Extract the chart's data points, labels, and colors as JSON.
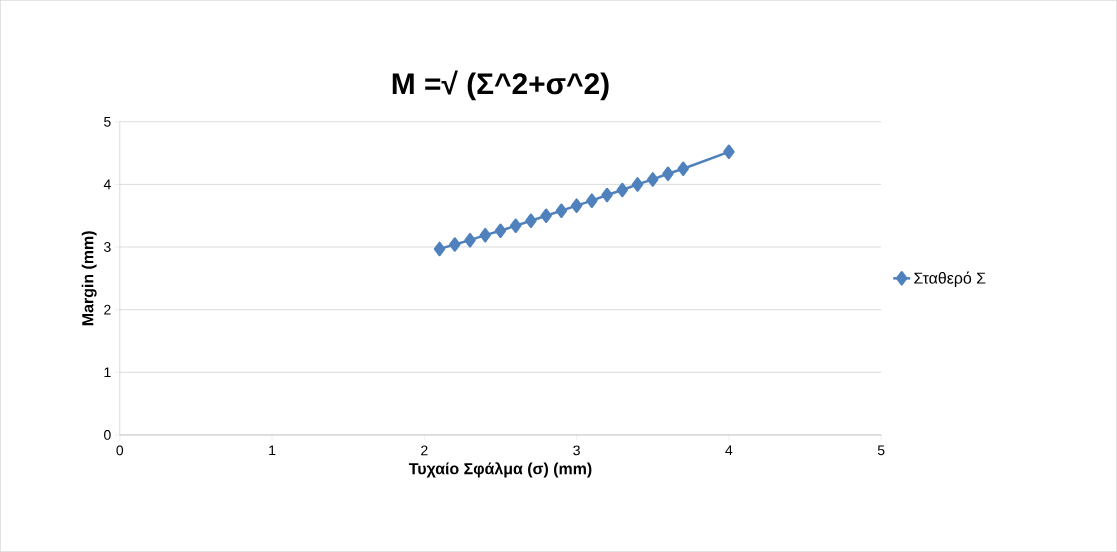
{
  "chart_data": {
    "type": "line",
    "title": "M =√ (Σ^2+σ^2)",
    "xlabel": "Τυχαίο Σφάλμα (σ) (mm)",
    "ylabel": "Margin (mm)",
    "x": [
      2.1,
      2.2,
      2.3,
      2.4,
      2.5,
      2.6,
      2.7,
      2.8,
      2.9,
      3.0,
      3.1,
      3.2,
      3.3,
      3.4,
      3.5,
      3.6,
      3.7,
      4.0
    ],
    "series": [
      {
        "name": "Σταθερό Σ",
        "color": "#4f81bd",
        "values": [
          2.97,
          3.04,
          3.11,
          3.19,
          3.26,
          3.34,
          3.42,
          3.5,
          3.58,
          3.66,
          3.74,
          3.83,
          3.91,
          4.0,
          4.08,
          4.17,
          4.25,
          4.52
        ]
      }
    ],
    "xlim": [
      0,
      5
    ],
    "ylim": [
      0,
      5
    ],
    "xticks": [
      0,
      1,
      2,
      3,
      4,
      5
    ],
    "yticks": [
      0,
      1,
      2,
      3,
      4,
      5
    ],
    "grid": "y",
    "legend": "right",
    "marker": "diamond",
    "line_style": "solid"
  }
}
